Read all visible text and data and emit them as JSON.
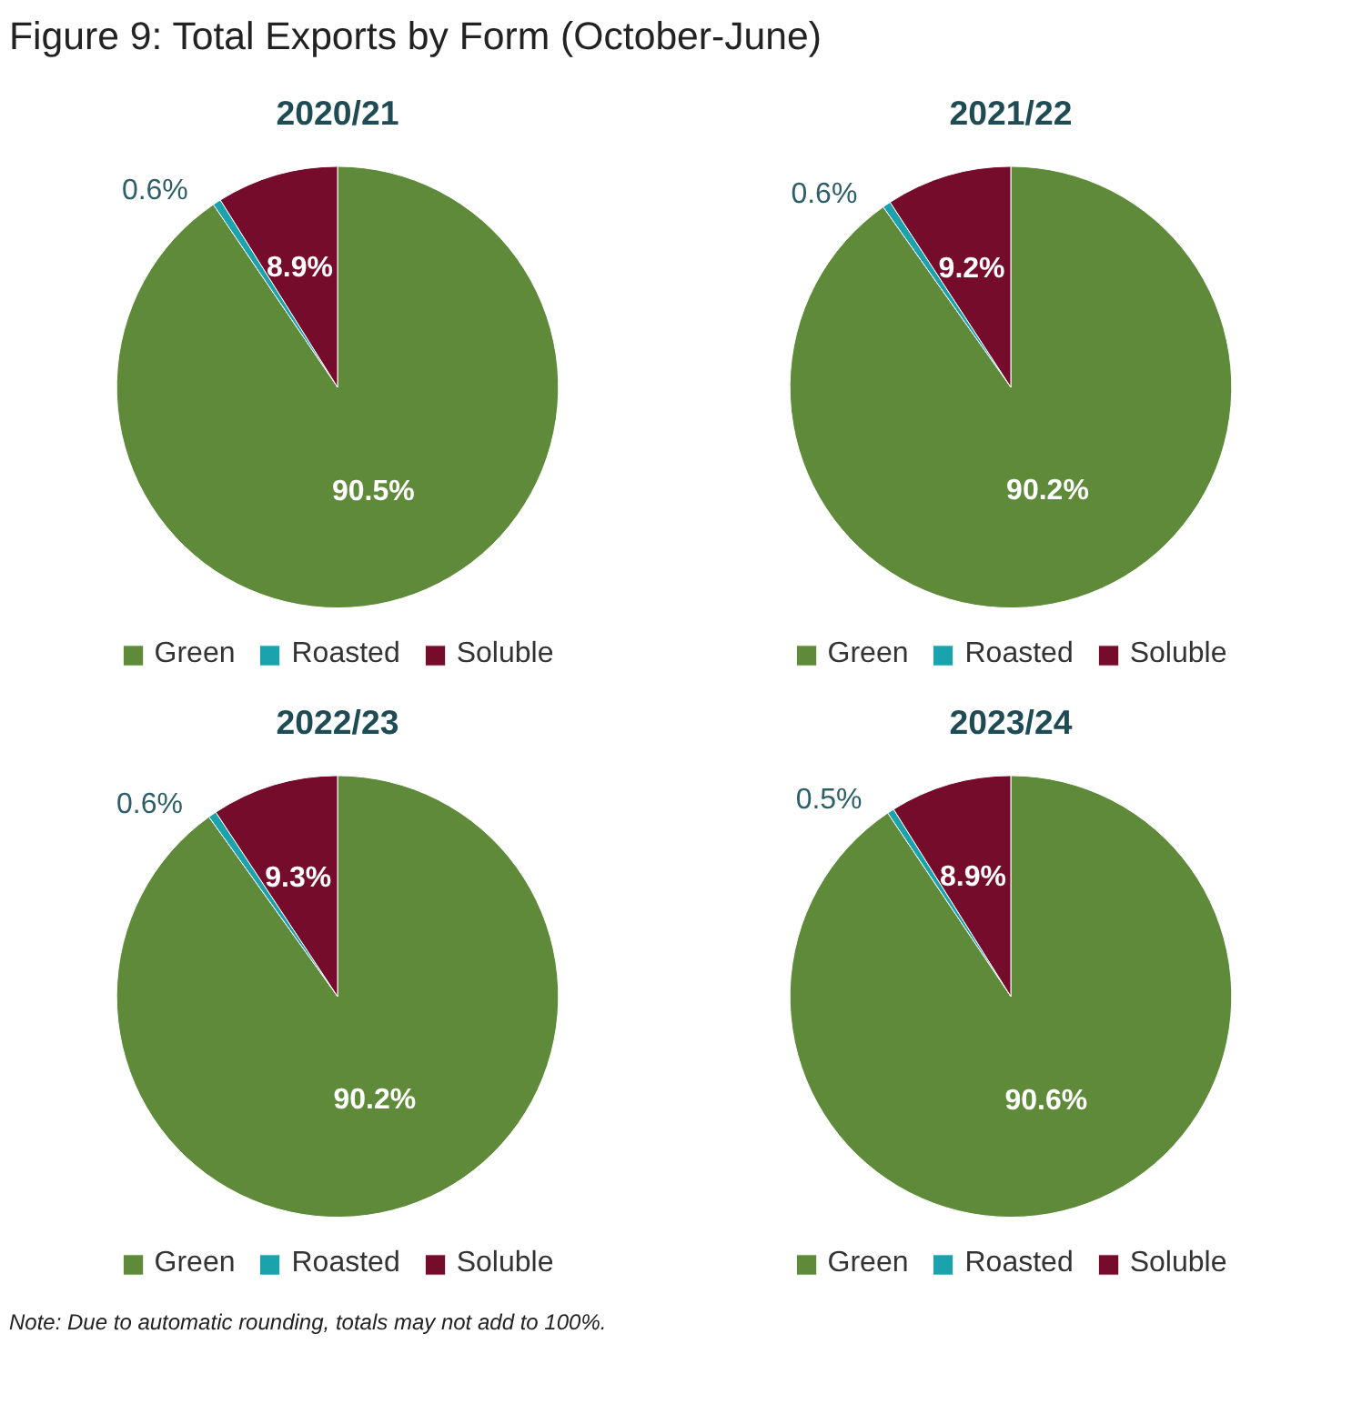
{
  "chart_data": [
    {
      "type": "pie",
      "title": "2020/21",
      "annotations": [
        "Figure 9: Total Exports by Form (October-June)"
      ],
      "categories": [
        "Green",
        "Roasted",
        "Soluble"
      ],
      "values": [
        90.5,
        0.6,
        8.9
      ],
      "value_labels": [
        "90.5%",
        "0.6%",
        "8.9%"
      ],
      "colors": [
        "#5f8a3a",
        "#1aa3ad",
        "#760c2c"
      ],
      "legend": "bottom"
    },
    {
      "type": "pie",
      "title": "2021/22",
      "categories": [
        "Green",
        "Roasted",
        "Soluble"
      ],
      "values": [
        90.2,
        0.6,
        9.2
      ],
      "value_labels": [
        "90.2%",
        "0.6%",
        "9.2%"
      ],
      "colors": [
        "#5f8a3a",
        "#1aa3ad",
        "#760c2c"
      ],
      "legend": "bottom"
    },
    {
      "type": "pie",
      "title": "2022/23",
      "categories": [
        "Green",
        "Roasted",
        "Soluble"
      ],
      "values": [
        90.2,
        0.6,
        9.3
      ],
      "value_labels": [
        "90.2%",
        "0.6%",
        "9.3%"
      ],
      "colors": [
        "#5f8a3a",
        "#1aa3ad",
        "#760c2c"
      ],
      "legend": "bottom"
    },
    {
      "type": "pie",
      "title": "2023/24",
      "annotations": [
        "Note: Due to automatic rounding, totals may not add to 100%."
      ],
      "categories": [
        "Green",
        "Roasted",
        "Soluble"
      ],
      "values": [
        90.6,
        0.5,
        8.9
      ],
      "value_labels": [
        "90.6%",
        "0.5%",
        "8.9%"
      ],
      "colors": [
        "#5f8a3a",
        "#1aa3ad",
        "#760c2c"
      ],
      "legend": "bottom"
    }
  ]
}
